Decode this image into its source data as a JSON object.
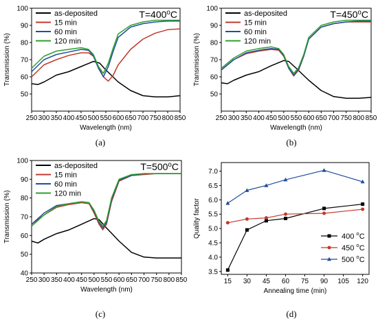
{
  "chart_data": [
    {
      "id": "a",
      "type": "line",
      "panel_label": "(a)",
      "annotation": "T=400",
      "annotation_sup": "o",
      "annotation_unit": "C",
      "xlabel": "Wavelength (nm)",
      "ylabel": "Transmission (%)",
      "xlim": [
        250,
        850
      ],
      "ylim": [
        40,
        100
      ],
      "xticks": [
        250,
        300,
        350,
        400,
        450,
        500,
        550,
        600,
        650,
        700,
        750,
        800,
        850
      ],
      "yticks": [
        50,
        60,
        70,
        80,
        90,
        100
      ],
      "legend_position": "top-left",
      "series": [
        {
          "name": "as-deposited",
          "color": "#000000",
          "x": [
            250,
            275,
            300,
            350,
            400,
            450,
            500,
            525,
            550,
            600,
            650,
            700,
            750,
            800,
            850
          ],
          "y": [
            56,
            55.5,
            57,
            61,
            63,
            66,
            69,
            68,
            64,
            57,
            52,
            49,
            48.3,
            48.3,
            49
          ]
        },
        {
          "name": "15 min",
          "color": "#c0392b",
          "x": [
            250,
            300,
            350,
            400,
            450,
            480,
            500,
            520,
            540,
            560,
            580,
            600,
            650,
            700,
            750,
            800,
            850
          ],
          "y": [
            60,
            67,
            70,
            72.5,
            74,
            74,
            72,
            66,
            60,
            57.5,
            61,
            67,
            76,
            82,
            85.5,
            87.5,
            88
          ]
        },
        {
          "name": "60 min",
          "color": "#1f4e9c",
          "x": [
            250,
            300,
            350,
            400,
            450,
            480,
            500,
            520,
            540,
            560,
            580,
            600,
            650,
            700,
            750,
            800,
            850
          ],
          "y": [
            63,
            70,
            73,
            74.5,
            76,
            75.5,
            72,
            65,
            60,
            66,
            75,
            83,
            89,
            91,
            92,
            92.5,
            92.5
          ]
        },
        {
          "name": "120 min",
          "color": "#2ca02c",
          "x": [
            250,
            300,
            350,
            400,
            450,
            480,
            500,
            520,
            540,
            560,
            580,
            600,
            650,
            700,
            750,
            800,
            850
          ],
          "y": [
            65,
            72,
            75,
            76,
            77,
            76,
            73,
            66,
            62,
            68,
            77,
            85,
            90,
            92,
            93,
            93,
            93
          ]
        }
      ]
    },
    {
      "id": "b",
      "type": "line",
      "panel_label": "(b)",
      "annotation": "T=450",
      "annotation_sup": "o",
      "annotation_unit": "C",
      "xlabel": "Wavelength (nm)",
      "ylabel": "Transmission (%)",
      "xlim": [
        250,
        850
      ],
      "ylim": [
        40,
        100
      ],
      "xticks": [
        250,
        300,
        350,
        400,
        450,
        500,
        550,
        600,
        650,
        700,
        750,
        800,
        850
      ],
      "yticks": [
        50,
        60,
        70,
        80,
        90,
        100
      ],
      "legend_position": "top-left",
      "series": [
        {
          "name": "as-deposited",
          "color": "#000000",
          "x": [
            250,
            275,
            300,
            350,
            400,
            450,
            500,
            520,
            550,
            600,
            650,
            700,
            750,
            800,
            850
          ],
          "y": [
            56.5,
            56,
            58,
            61,
            63,
            66.5,
            69.5,
            69,
            65,
            58,
            52,
            48.5,
            47.5,
            47.5,
            48
          ]
        },
        {
          "name": "15 min",
          "color": "#c0392b",
          "x": [
            250,
            300,
            350,
            400,
            450,
            480,
            500,
            520,
            540,
            560,
            580,
            600,
            650,
            700,
            750,
            800,
            850
          ],
          "y": [
            64,
            70,
            73.5,
            75,
            76,
            75.5,
            72,
            65,
            60.5,
            64,
            72,
            82,
            89,
            91,
            92,
            92,
            92
          ]
        },
        {
          "name": "60 min",
          "color": "#1f4e9c",
          "x": [
            250,
            300,
            350,
            400,
            450,
            480,
            500,
            520,
            540,
            560,
            580,
            600,
            650,
            700,
            750,
            800,
            850
          ],
          "y": [
            64,
            70,
            74,
            75.5,
            76.5,
            76,
            72.5,
            65,
            61,
            64.5,
            72,
            82,
            89,
            91,
            92,
            92.5,
            92.5
          ]
        },
        {
          "name": "120 min",
          "color": "#2ca02c",
          "x": [
            250,
            300,
            350,
            400,
            450,
            480,
            500,
            520,
            540,
            560,
            580,
            600,
            650,
            700,
            750,
            800,
            850
          ],
          "y": [
            65,
            71,
            75,
            76.5,
            77.5,
            76.5,
            73,
            66,
            62,
            65.5,
            73,
            83,
            90,
            92,
            93,
            93,
            93
          ]
        }
      ]
    },
    {
      "id": "c",
      "type": "line",
      "panel_label": "(c)",
      "annotation": "T=500",
      "annotation_sup": "o",
      "annotation_unit": "C",
      "xlabel": "Wavelength (nm)",
      "ylabel": "Transmission (%)",
      "xlim": [
        250,
        850
      ],
      "ylim": [
        40,
        100
      ],
      "xticks": [
        250,
        300,
        350,
        400,
        450,
        500,
        550,
        600,
        650,
        700,
        750,
        800,
        850
      ],
      "yticks": [
        40,
        50,
        60,
        70,
        80,
        90,
        100
      ],
      "legend_position": "top-left",
      "series": [
        {
          "name": "as-deposited",
          "color": "#000000",
          "x": [
            250,
            275,
            300,
            350,
            400,
            450,
            500,
            520,
            550,
            600,
            650,
            700,
            750,
            800,
            850
          ],
          "y": [
            57,
            56,
            58,
            61,
            63,
            66,
            69,
            68.5,
            64,
            57,
            51,
            48.5,
            48,
            48,
            48
          ]
        },
        {
          "name": "15 min",
          "color": "#c0392b",
          "x": [
            250,
            300,
            350,
            400,
            450,
            480,
            500,
            520,
            535,
            550,
            570,
            600,
            650,
            700,
            750,
            800,
            850
          ],
          "y": [
            66,
            71,
            75,
            76.5,
            77.5,
            77,
            72,
            66,
            63,
            66,
            78,
            89,
            92,
            92.5,
            93,
            93,
            93
          ]
        },
        {
          "name": "60 min",
          "color": "#1f4e9c",
          "x": [
            250,
            300,
            350,
            400,
            450,
            480,
            500,
            520,
            535,
            550,
            570,
            600,
            650,
            700,
            750,
            800,
            850
          ],
          "y": [
            66,
            72,
            76,
            77,
            78,
            77.5,
            73,
            67,
            64,
            67,
            79,
            89.5,
            92,
            93,
            93,
            93,
            93
          ]
        },
        {
          "name": "120 min",
          "color": "#2ca02c",
          "x": [
            250,
            300,
            350,
            400,
            450,
            480,
            500,
            520,
            535,
            550,
            570,
            600,
            650,
            700,
            750,
            800,
            850
          ],
          "y": [
            65,
            71,
            75.5,
            77,
            78,
            77.5,
            73.5,
            67.5,
            65,
            68,
            80,
            90,
            92.5,
            93,
            93,
            93,
            93
          ]
        }
      ]
    },
    {
      "id": "d",
      "type": "line",
      "panel_label": "(d)",
      "xlabel": "Annealing time (min)",
      "ylabel": "Quality factor",
      "xlim": [
        10,
        125
      ],
      "ylim": [
        3.4,
        7.3
      ],
      "xticks": [
        15,
        30,
        45,
        60,
        75,
        90,
        105,
        120
      ],
      "yticks": [
        3.5,
        4.0,
        4.5,
        5.0,
        5.5,
        6.0,
        6.5,
        7.0
      ],
      "legend_position": "bottom-right",
      "series": [
        {
          "name": "400",
          "unit": "C",
          "sup": "o",
          "color": "#000000",
          "marker": "square",
          "x": [
            15,
            30,
            45,
            60,
            90,
            120
          ],
          "y": [
            3.55,
            4.95,
            5.27,
            5.35,
            5.7,
            5.85
          ]
        },
        {
          "name": "450",
          "unit": "C",
          "sup": "o",
          "color": "#c0392b",
          "marker": "circle",
          "x": [
            15,
            30,
            45,
            60,
            90,
            120
          ],
          "y": [
            5.2,
            5.33,
            5.37,
            5.5,
            5.53,
            5.67
          ]
        },
        {
          "name": "500",
          "unit": "C",
          "sup": "o",
          "color": "#1f4e9c",
          "marker": "triangle",
          "x": [
            15,
            30,
            45,
            60,
            90,
            120
          ],
          "y": [
            5.88,
            6.33,
            6.5,
            6.7,
            7.03,
            6.63
          ]
        }
      ]
    }
  ]
}
